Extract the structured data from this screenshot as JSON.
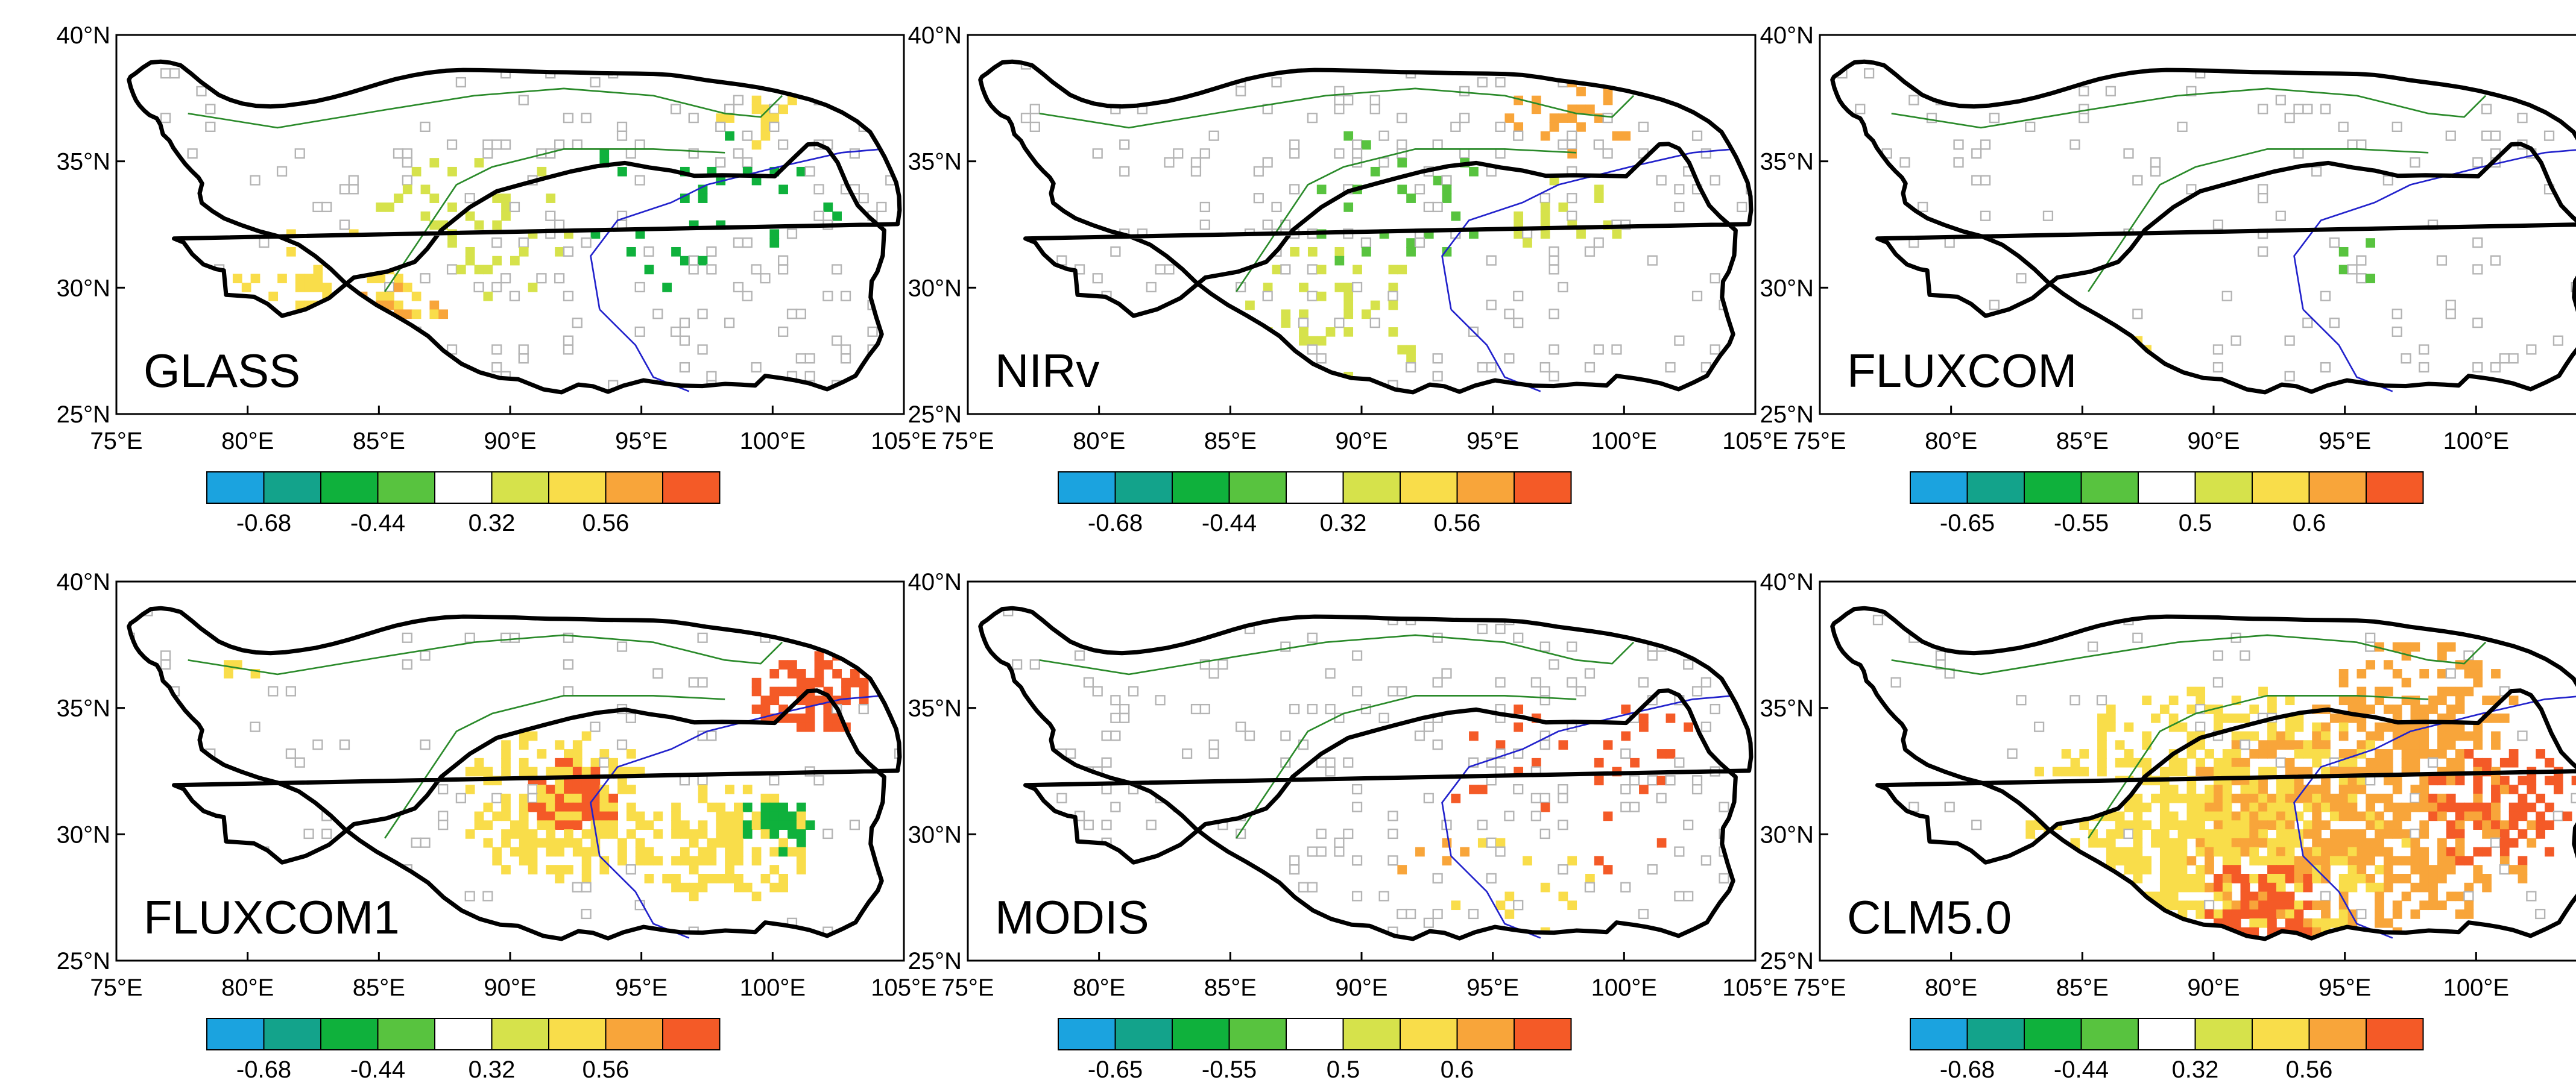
{
  "tick_labels": {
    "lat": [
      "25°N",
      "30°N",
      "35°N",
      "40°N"
    ],
    "lon": [
      "75°E",
      "80°E",
      "85°E",
      "90°E",
      "95°E",
      "100°E",
      "105°E"
    ]
  },
  "axis_ranges": {
    "lon": [
      75,
      105
    ],
    "lat": [
      25,
      40
    ]
  },
  "colorbar_colors": [
    "#1ba3df",
    "#13a38b",
    "#0fb13c",
    "#58c33f",
    "#ffffff",
    "#d6e24b",
    "#f9dd4a",
    "#f8a53a",
    "#f45a27"
  ],
  "map_colors": {
    "outline": "#000000",
    "basin": "#2a8a2a",
    "river": "#2222cc",
    "mask": "#b4b4b4"
  },
  "panels": [
    {
      "name": "GLASS",
      "cbar_labels": [
        "-0.68",
        "-0.44",
        "0.32",
        "0.56"
      ]
    },
    {
      "name": "NIRv",
      "cbar_labels": [
        "-0.68",
        "-0.44",
        "0.32",
        "0.56"
      ]
    },
    {
      "name": "FLUXCOM",
      "cbar_labels": [
        "-0.65",
        "-0.55",
        "0.5",
        "0.6"
      ]
    },
    {
      "name": "FLUXCOM1",
      "cbar_labels": [
        "-0.68",
        "-0.44",
        "0.32",
        "0.56"
      ]
    },
    {
      "name": "MODIS",
      "cbar_labels": [
        "-0.65",
        "-0.55",
        "0.5",
        "0.6"
      ]
    },
    {
      "name": "CLM5.0",
      "cbar_labels": [
        "-0.68",
        "-0.44",
        "0.32",
        "0.56"
      ]
    }
  ]
}
